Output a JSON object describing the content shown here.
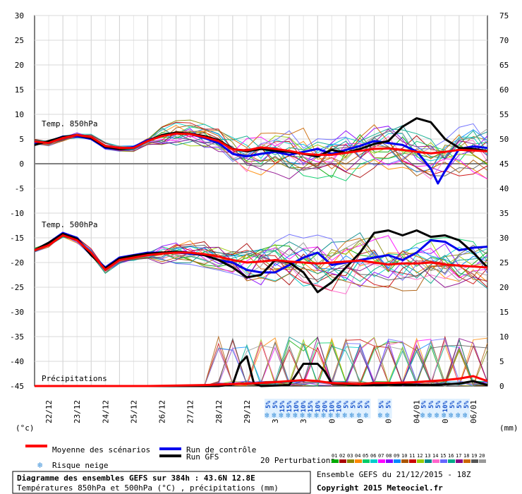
{
  "chart_data": {
    "type": "line",
    "title": "Diagramme des ensembles GEFS sur 384h : 43.6N 12.8E",
    "subtitle": "Températures 850hPa et 500hPa (°C) , précipitations (mm)",
    "left_axis_unit": "(°c)",
    "right_axis_unit": "(mm)",
    "left_ticks": [
      30,
      25,
      20,
      15,
      10,
      5,
      0,
      -5,
      -10,
      -15,
      -20,
      -25,
      -30,
      -35,
      -40,
      -45
    ],
    "right_ticks": [
      75,
      70,
      65,
      60,
      55,
      50,
      45,
      40,
      35,
      30,
      25,
      20,
      15,
      10,
      5,
      0
    ],
    "ylim": [
      -45,
      30
    ],
    "precip_ylim": [
      0,
      75
    ],
    "x_dates": [
      "22/12",
      "23/12",
      "24/12",
      "25/12",
      "26/12",
      "27/12",
      "28/12",
      "29/12",
      "30/12",
      "31/12",
      "01/01",
      "02/01",
      "03/01",
      "04/01",
      "05/01",
      "06/01"
    ],
    "x_hours": [
      0,
      384
    ],
    "panels": {
      "t850": "Temp. 850hPa",
      "t500": "Temp. 500hPa",
      "precip": "Précipitations"
    },
    "series": [
      {
        "name": "Moyenne des scénarios",
        "group": "t850",
        "color": "#ff0000",
        "points": [
          [
            0,
            4.5
          ],
          [
            12,
            4.2
          ],
          [
            24,
            5.2
          ],
          [
            36,
            5.8
          ],
          [
            48,
            5.4
          ],
          [
            60,
            3.6
          ],
          [
            72,
            3.2
          ],
          [
            84,
            3.2
          ],
          [
            96,
            4.6
          ],
          [
            108,
            5.6
          ],
          [
            120,
            6.1
          ],
          [
            132,
            6.0
          ],
          [
            144,
            5.4
          ],
          [
            156,
            4.6
          ],
          [
            168,
            2.9
          ],
          [
            180,
            2.7
          ],
          [
            192,
            3.3
          ],
          [
            204,
            3.0
          ],
          [
            216,
            2.6
          ],
          [
            228,
            2.0
          ],
          [
            240,
            1.8
          ],
          [
            252,
            1.8
          ],
          [
            264,
            2.2
          ],
          [
            276,
            2.6
          ],
          [
            288,
            3.0
          ],
          [
            300,
            3.1
          ],
          [
            312,
            2.8
          ],
          [
            324,
            2.4
          ],
          [
            336,
            2.1
          ],
          [
            348,
            2.4
          ],
          [
            360,
            2.8
          ],
          [
            372,
            2.7
          ],
          [
            384,
            2.5
          ]
        ]
      },
      {
        "name": "Run de contrôle",
        "group": "t850",
        "color": "#0000ee",
        "points": [
          [
            0,
            4.0
          ],
          [
            12,
            4.5
          ],
          [
            24,
            5.5
          ],
          [
            36,
            5.6
          ],
          [
            48,
            5.0
          ],
          [
            60,
            3.2
          ],
          [
            72,
            3.0
          ],
          [
            84,
            3.4
          ],
          [
            96,
            4.8
          ],
          [
            108,
            5.6
          ],
          [
            120,
            6.2
          ],
          [
            132,
            6.0
          ],
          [
            144,
            5.2
          ],
          [
            156,
            4.2
          ],
          [
            168,
            2.0
          ],
          [
            180,
            1.5
          ],
          [
            192,
            2.0
          ],
          [
            204,
            2.4
          ],
          [
            216,
            1.8
          ],
          [
            228,
            2.4
          ],
          [
            240,
            3.0
          ],
          [
            252,
            2.0
          ],
          [
            264,
            2.8
          ],
          [
            276,
            3.6
          ],
          [
            288,
            4.6
          ],
          [
            300,
            4.2
          ],
          [
            312,
            3.8
          ],
          [
            324,
            2.5
          ],
          [
            336,
            -1.0
          ],
          [
            342,
            -4.0
          ],
          [
            348,
            -1.5
          ],
          [
            360,
            3.0
          ],
          [
            372,
            3.5
          ],
          [
            384,
            3.2
          ]
        ]
      },
      {
        "name": "Run GFS",
        "group": "t850",
        "color": "#000000",
        "points": [
          [
            0,
            3.8
          ],
          [
            12,
            4.6
          ],
          [
            24,
            5.4
          ],
          [
            36,
            5.8
          ],
          [
            48,
            5.2
          ],
          [
            60,
            3.4
          ],
          [
            72,
            3.0
          ],
          [
            84,
            3.2
          ],
          [
            96,
            4.6
          ],
          [
            108,
            5.8
          ],
          [
            120,
            6.3
          ],
          [
            132,
            6.1
          ],
          [
            144,
            5.6
          ],
          [
            156,
            4.8
          ],
          [
            168,
            3.0
          ],
          [
            180,
            2.5
          ],
          [
            192,
            3.0
          ],
          [
            204,
            2.6
          ],
          [
            216,
            2.4
          ],
          [
            228,
            2.0
          ],
          [
            240,
            1.5
          ],
          [
            252,
            2.8
          ],
          [
            264,
            2.2
          ],
          [
            276,
            3.0
          ],
          [
            288,
            4.0
          ],
          [
            300,
            4.6
          ],
          [
            312,
            7.5
          ],
          [
            324,
            9.2
          ],
          [
            336,
            8.4
          ],
          [
            348,
            5.0
          ],
          [
            360,
            3.2
          ],
          [
            372,
            3.0
          ],
          [
            384,
            2.6
          ]
        ]
      },
      {
        "name": "Moyenne des scénarios",
        "group": "t500",
        "color": "#ff0000",
        "points": [
          [
            0,
            -17.5
          ],
          [
            12,
            -16.5
          ],
          [
            24,
            -14.5
          ],
          [
            36,
            -15.5
          ],
          [
            48,
            -18.0
          ],
          [
            60,
            -21.5
          ],
          [
            72,
            -19.5
          ],
          [
            84,
            -19.0
          ],
          [
            96,
            -18.5
          ],
          [
            108,
            -18.2
          ],
          [
            120,
            -18.0
          ],
          [
            132,
            -18.0
          ],
          [
            144,
            -18.3
          ],
          [
            156,
            -18.8
          ],
          [
            168,
            -19.5
          ],
          [
            180,
            -20.0
          ],
          [
            192,
            -19.8
          ],
          [
            204,
            -19.5
          ],
          [
            216,
            -19.8
          ],
          [
            228,
            -20.0
          ],
          [
            240,
            -20.2
          ],
          [
            252,
            -20.0
          ],
          [
            264,
            -19.8
          ],
          [
            276,
            -19.6
          ],
          [
            288,
            -20.0
          ],
          [
            300,
            -20.4
          ],
          [
            312,
            -20.2
          ],
          [
            324,
            -20.2
          ],
          [
            336,
            -20.0
          ],
          [
            348,
            -20.4
          ],
          [
            360,
            -20.6
          ],
          [
            372,
            -20.8
          ],
          [
            384,
            -21.0
          ]
        ]
      },
      {
        "name": "Run de contrôle",
        "group": "t500",
        "color": "#0000ee",
        "points": [
          [
            0,
            -17.5
          ],
          [
            12,
            -16.0
          ],
          [
            24,
            -14.0
          ],
          [
            36,
            -15.0
          ],
          [
            48,
            -18.5
          ],
          [
            60,
            -21.0
          ],
          [
            72,
            -19.0
          ],
          [
            84,
            -18.5
          ],
          [
            96,
            -18.0
          ],
          [
            108,
            -18.0
          ],
          [
            120,
            -18.0
          ],
          [
            132,
            -18.2
          ],
          [
            144,
            -18.5
          ],
          [
            156,
            -19.5
          ],
          [
            168,
            -20.0
          ],
          [
            180,
            -21.5
          ],
          [
            192,
            -22.0
          ],
          [
            204,
            -22.0
          ],
          [
            216,
            -20.5
          ],
          [
            228,
            -19.0
          ],
          [
            240,
            -18.0
          ],
          [
            252,
            -20.5
          ],
          [
            264,
            -20.0
          ],
          [
            276,
            -19.5
          ],
          [
            288,
            -19.0
          ],
          [
            300,
            -18.5
          ],
          [
            312,
            -19.5
          ],
          [
            324,
            -18.0
          ],
          [
            336,
            -15.5
          ],
          [
            348,
            -15.8
          ],
          [
            360,
            -17.5
          ],
          [
            372,
            -17.0
          ],
          [
            384,
            -16.8
          ]
        ]
      },
      {
        "name": "Run GFS",
        "group": "t500",
        "color": "#000000",
        "points": [
          [
            0,
            -17.5
          ],
          [
            12,
            -16.0
          ],
          [
            24,
            -14.2
          ],
          [
            36,
            -15.2
          ],
          [
            48,
            -18.5
          ],
          [
            60,
            -21.2
          ],
          [
            72,
            -19.2
          ],
          [
            84,
            -18.6
          ],
          [
            96,
            -18.2
          ],
          [
            108,
            -18.0
          ],
          [
            120,
            -17.8
          ],
          [
            132,
            -18.0
          ],
          [
            144,
            -18.5
          ],
          [
            156,
            -19.5
          ],
          [
            168,
            -21.0
          ],
          [
            180,
            -23.0
          ],
          [
            192,
            -22.5
          ],
          [
            204,
            -19.5
          ],
          [
            216,
            -20.0
          ],
          [
            228,
            -22.0
          ],
          [
            240,
            -26.0
          ],
          [
            252,
            -24.0
          ],
          [
            264,
            -21.0
          ],
          [
            276,
            -18.0
          ],
          [
            288,
            -14.0
          ],
          [
            300,
            -13.5
          ],
          [
            312,
            -14.5
          ],
          [
            324,
            -13.5
          ],
          [
            336,
            -14.8
          ],
          [
            348,
            -14.5
          ],
          [
            360,
            -15.5
          ],
          [
            372,
            -18.0
          ],
          [
            384,
            -21.0
          ]
        ]
      },
      {
        "name": "Moyenne des scénarios",
        "group": "precip",
        "color": "#ff0000",
        "points": [
          [
            0,
            0
          ],
          [
            48,
            0
          ],
          [
            96,
            0
          ],
          [
            144,
            0.2
          ],
          [
            168,
            0.4
          ],
          [
            192,
            0.6
          ],
          [
            204,
            0.8
          ],
          [
            216,
            1.0
          ],
          [
            228,
            1.2
          ],
          [
            240,
            1.0
          ],
          [
            252,
            0.6
          ],
          [
            264,
            0.5
          ],
          [
            276,
            0.4
          ],
          [
            288,
            0.6
          ],
          [
            300,
            0.6
          ],
          [
            312,
            0.7
          ],
          [
            324,
            0.8
          ],
          [
            336,
            1.0
          ],
          [
            348,
            1.2
          ],
          [
            360,
            1.5
          ],
          [
            372,
            2.0
          ],
          [
            384,
            1.0
          ]
        ]
      },
      {
        "name": "Run GFS",
        "group": "precip",
        "color": "#000000",
        "points": [
          [
            0,
            0
          ],
          [
            120,
            0
          ],
          [
            156,
            0
          ],
          [
            168,
            0.3
          ],
          [
            174,
            4.5
          ],
          [
            180,
            6.0
          ],
          [
            186,
            0.5
          ],
          [
            192,
            0
          ],
          [
            216,
            0.2
          ],
          [
            228,
            4.5
          ],
          [
            240,
            4.5
          ],
          [
            246,
            3.0
          ],
          [
            252,
            0.5
          ],
          [
            264,
            0.3
          ],
          [
            288,
            0.2
          ],
          [
            312,
            0.3
          ],
          [
            336,
            0.2
          ],
          [
            360,
            0.5
          ],
          [
            372,
            1.0
          ],
          [
            384,
            0.2
          ]
        ]
      }
    ],
    "snow_risk": [
      {
        "h": 198,
        "pct": "5%"
      },
      {
        "h": 204,
        "pct": "5%"
      },
      {
        "h": 210,
        "pct": "15%"
      },
      {
        "h": 216,
        "pct": "15%"
      },
      {
        "h": 222,
        "pct": "10%"
      },
      {
        "h": 228,
        "pct": "10%"
      },
      {
        "h": 234,
        "pct": "15%"
      },
      {
        "h": 240,
        "pct": "10%"
      },
      {
        "h": 246,
        "pct": "20%"
      },
      {
        "h": 252,
        "pct": "10%"
      },
      {
        "h": 258,
        "pct": "10%"
      },
      {
        "h": 264,
        "pct": "5%"
      },
      {
        "h": 270,
        "pct": "5%"
      },
      {
        "h": 276,
        "pct": "5%"
      },
      {
        "h": 282,
        "pct": "5%"
      },
      {
        "h": 294,
        "pct": "5%"
      },
      {
        "h": 300,
        "pct": "5%"
      },
      {
        "h": 330,
        "pct": "5%"
      },
      {
        "h": 336,
        "pct": "5%"
      },
      {
        "h": 342,
        "pct": "5%"
      },
      {
        "h": 348,
        "pct": "10%"
      },
      {
        "h": 354,
        "pct": "5%"
      },
      {
        "h": 360,
        "pct": "5%"
      },
      {
        "h": 366,
        "pct": "5%"
      }
    ],
    "legend": {
      "mean": "Moyenne des scénarios",
      "control": "Run de contrôle",
      "gfs": "Run GFS",
      "snow": "Risque neige",
      "perturbations": "20 Perturbations",
      "pert_numbers": [
        "01",
        "02",
        "03",
        "04",
        "05",
        "06",
        "07",
        "08",
        "09",
        "10",
        "11",
        "12",
        "13",
        "14",
        "15",
        "16",
        "17",
        "18",
        "19",
        "20"
      ],
      "pert_colors": [
        "#00aa00",
        "#aa0000",
        "#888800",
        "#ff8800",
        "#00cc66",
        "#00cccc",
        "#ff00ff",
        "#8800ff",
        "#0088ff",
        "#aa5500",
        "#cc0000",
        "#99cc00",
        "#008888",
        "#ff66cc",
        "#6666ff",
        "#00aa88",
        "#880088",
        "#cc6600",
        "#555555",
        "#999999"
      ]
    },
    "footer": {
      "ensemble": "Ensemble GEFS du 21/12/2015 - 18Z",
      "copyright": "Copyright 2015 Meteociel.fr"
    }
  }
}
